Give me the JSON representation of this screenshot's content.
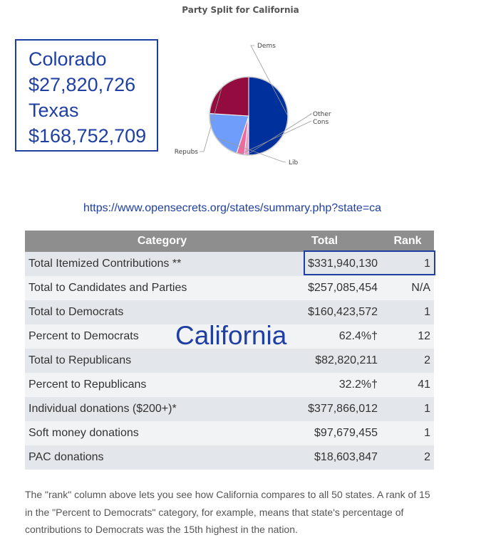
{
  "chart_data": {
    "type": "pie",
    "title": "Party Split for California",
    "slices": [
      {
        "label": "Dems",
        "value": 50,
        "color": "#00309b"
      },
      {
        "label": "Other",
        "value": 1.8,
        "color": "#e8a0c8"
      },
      {
        "label": "Cons",
        "value": 3.2,
        "color": "#ee6a9c"
      },
      {
        "label": "Lib",
        "value": 21,
        "color": "#6f9dfb"
      },
      {
        "label": "Repubs",
        "value": 24,
        "color": "#930b3f"
      }
    ]
  },
  "overlay": {
    "state1": "Colorado",
    "amount1": "$27,820,726",
    "state2": "Texas",
    "amount2": "$168,752,709",
    "table_state": "California"
  },
  "source_url": "https://www.opensecrets.org/states/summary.php?state=ca",
  "table": {
    "headers": {
      "category": "Category",
      "total": "Total",
      "rank": "Rank"
    },
    "rows": [
      {
        "category": "Total Itemized Contributions **",
        "total": "$331,940,130",
        "rank": "1"
      },
      {
        "category": "Total to Candidates and Parties",
        "total": "$257,085,454",
        "rank": "N/A"
      },
      {
        "category": "Total to Democrats",
        "total": "$160,423,572",
        "rank": "1"
      },
      {
        "category": "Percent to Democrats",
        "total": "62.4%†",
        "rank": "12"
      },
      {
        "category": "Total to Republicans",
        "total": "$82,820,211",
        "rank": "2"
      },
      {
        "category": "Percent to Republicans",
        "total": "32.2%†",
        "rank": "41"
      },
      {
        "category": "Individual donations ($200+)*",
        "total": "$377,866,012",
        "rank": "1"
      },
      {
        "category": "Soft money donations",
        "total": "$97,679,455",
        "rank": "1"
      },
      {
        "category": "PAC donations",
        "total": "$18,603,847",
        "rank": "2"
      }
    ]
  },
  "note": "The \"rank\" column above lets you see how California compares to all 50 states. A rank of 15 in the \"Percent to Democrats\" category, for example, means that state's percentage of contributions to Democrats was the 15th highest in the nation."
}
